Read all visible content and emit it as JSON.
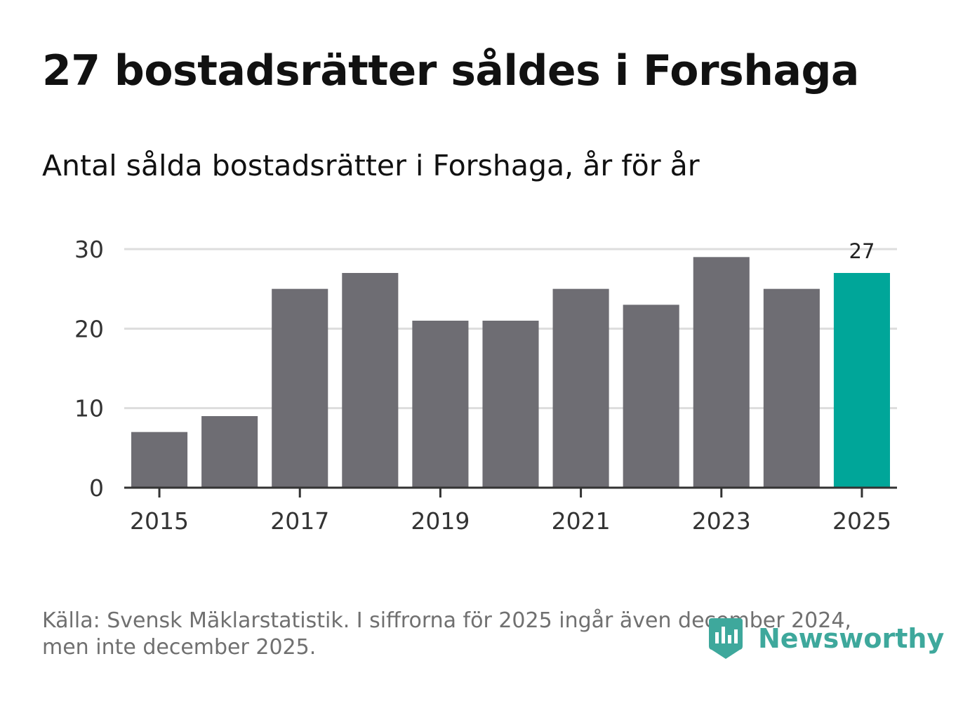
{
  "title": "27 bostadsrätter såldes i Forshaga",
  "subtitle": "Antal sålda bostadsrätter i Forshaga, år för år",
  "source": "Källa: Svensk Mäklarstatistik. I siffrorna för 2025 ingår även december 2024, men inte december 2025.",
  "logo": {
    "text": "Newsworthy",
    "icon": "newsworthy-logo-icon"
  },
  "colors": {
    "bar": "#6e6d73",
    "highlight": "#00a699",
    "grid": "#dddddd",
    "axis": "#333333",
    "label": "#333333",
    "logo": "#3ea89c"
  },
  "chart_data": {
    "type": "bar",
    "title": "27 bostadsrätter såldes i Forshaga",
    "subtitle": "Antal sålda bostadsrätter i Forshaga, år för år",
    "xlabel": "",
    "ylabel": "",
    "categories": [
      2015,
      2016,
      2017,
      2018,
      2019,
      2020,
      2021,
      2022,
      2023,
      2024,
      2025
    ],
    "values": [
      7,
      9,
      25,
      27,
      21,
      21,
      25,
      23,
      29,
      25,
      27
    ],
    "highlight_category": 2025,
    "data_labels": [
      {
        "category": 2025,
        "text": "27"
      }
    ],
    "x_ticks": [
      "2015",
      "2017",
      "2019",
      "2021",
      "2023",
      "2025"
    ],
    "y_ticks": [
      0,
      10,
      20,
      30
    ],
    "ylim": [
      0,
      30
    ],
    "grid": true,
    "legend": "none"
  }
}
